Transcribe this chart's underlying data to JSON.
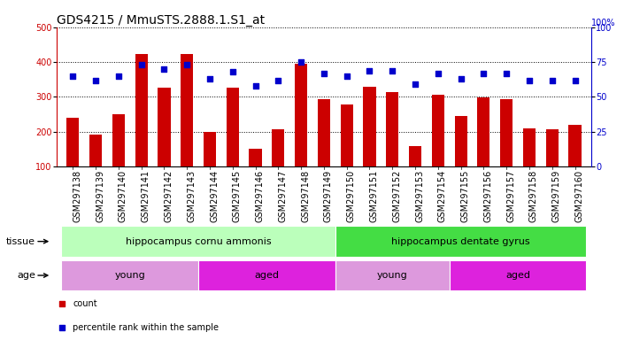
{
  "title": "GDS4215 / MmuSTS.2888.1.S1_at",
  "categories": [
    "GSM297138",
    "GSM297139",
    "GSM297140",
    "GSM297141",
    "GSM297142",
    "GSM297143",
    "GSM297144",
    "GSM297145",
    "GSM297146",
    "GSM297147",
    "GSM297148",
    "GSM297149",
    "GSM297150",
    "GSM297151",
    "GSM297152",
    "GSM297153",
    "GSM297154",
    "GSM297155",
    "GSM297156",
    "GSM297157",
    "GSM297158",
    "GSM297159",
    "GSM297160"
  ],
  "bar_values": [
    240,
    192,
    250,
    422,
    327,
    422,
    200,
    327,
    152,
    207,
    395,
    293,
    277,
    330,
    313,
    160,
    307,
    245,
    298,
    293,
    210,
    208,
    220
  ],
  "percentile_values": [
    65,
    62,
    65,
    73,
    70,
    73,
    63,
    68,
    58,
    62,
    75,
    67,
    65,
    69,
    69,
    59,
    67,
    63,
    67,
    67,
    62,
    62,
    62
  ],
  "bar_color": "#CC0000",
  "dot_color": "#0000CC",
  "ylim_left": [
    100,
    500
  ],
  "ylim_right": [
    0,
    100
  ],
  "yticks_left": [
    100,
    200,
    300,
    400,
    500
  ],
  "yticks_right": [
    0,
    25,
    50,
    75,
    100
  ],
  "background_color": "#ffffff",
  "plot_bg_color": "#ffffff",
  "tissue_groups": [
    {
      "label": "hippocampus cornu ammonis",
      "start": 0,
      "end": 12,
      "color": "#bbffbb"
    },
    {
      "label": "hippocampus dentate gyrus",
      "start": 12,
      "end": 23,
      "color": "#44dd44"
    }
  ],
  "age_groups": [
    {
      "label": "young",
      "start": 0,
      "end": 6,
      "color": "#dd99dd"
    },
    {
      "label": "aged",
      "start": 6,
      "end": 12,
      "color": "#dd22dd"
    },
    {
      "label": "young",
      "start": 12,
      "end": 17,
      "color": "#dd99dd"
    },
    {
      "label": "aged",
      "start": 17,
      "end": 23,
      "color": "#dd22dd"
    }
  ],
  "tissue_label": "tissue",
  "age_label": "age",
  "legend_count": "count",
  "legend_percentile": "percentile rank within the sample",
  "grid_color": "black",
  "title_fontsize": 10,
  "tick_fontsize": 7,
  "label_fontsize": 8,
  "anno_fontsize": 8
}
